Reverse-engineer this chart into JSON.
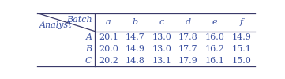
{
  "top_left_label_top": "Batch",
  "top_left_label_bottom": "Analyst",
  "col_headers": [
    "a",
    "b",
    "c",
    "d",
    "e",
    "f"
  ],
  "row_headers": [
    "A",
    "B",
    "C"
  ],
  "table_data": [
    [
      20.1,
      14.7,
      13.0,
      17.8,
      16.0,
      14.9
    ],
    [
      20.0,
      14.9,
      13.0,
      17.7,
      16.2,
      15.1
    ],
    [
      20.2,
      14.8,
      13.1,
      17.9,
      16.1,
      15.0
    ]
  ],
  "bg_color": "#ffffff",
  "text_color": "#3a50a0",
  "line_color": "#3a3a6a",
  "font_size": 8.0,
  "header_font_size": 8.0,
  "fig_width": 3.61,
  "fig_height": 1.0,
  "dpi": 100
}
